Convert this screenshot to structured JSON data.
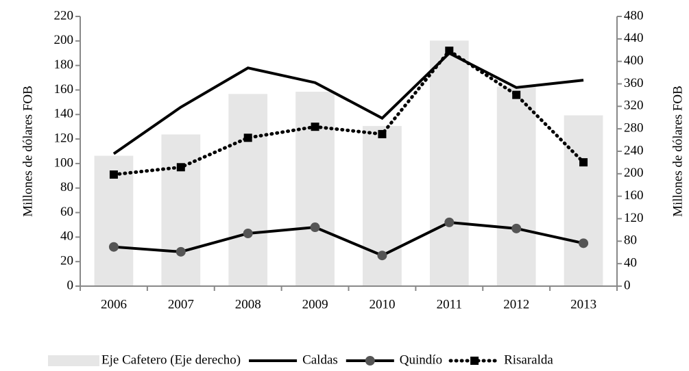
{
  "chart_data": {
    "type": "bar-line",
    "categories": [
      "2006",
      "2007",
      "2008",
      "2009",
      "2010",
      "2011",
      "2012",
      "2013"
    ],
    "ylabel": "Millones de dólares FOB",
    "y2label": "Millones de dólares FOB",
    "ylim": [
      0,
      220
    ],
    "yticks": [
      0,
      20,
      40,
      60,
      80,
      100,
      120,
      140,
      160,
      180,
      200,
      220
    ],
    "y2lim": [
      0,
      480
    ],
    "y2ticks": [
      0,
      40,
      80,
      120,
      160,
      200,
      240,
      280,
      320,
      360,
      400,
      440,
      480
    ],
    "series": [
      {
        "name": "Eje Cafetero (Eje derecho)",
        "kind": "bar",
        "axis": "y2",
        "color": "#e6e6e6",
        "values": [
          232,
          270,
          342,
          346,
          285,
          437,
          355,
          304
        ]
      },
      {
        "name": "Caldas",
        "kind": "line",
        "color": "#000000",
        "values": [
          108,
          146,
          178,
          166,
          137,
          190,
          162,
          168
        ]
      },
      {
        "name": "Quindío",
        "kind": "line",
        "marker": "circle",
        "color": "#000000",
        "markercolor": "#555555",
        "values": [
          32,
          28,
          43,
          48,
          25,
          52,
          47,
          35
        ]
      },
      {
        "name": "Risaralda",
        "kind": "line",
        "marker": "square",
        "dashed": true,
        "color": "#000000",
        "values": [
          91,
          97,
          121,
          130,
          124,
          192,
          156,
          101
        ]
      }
    ]
  }
}
